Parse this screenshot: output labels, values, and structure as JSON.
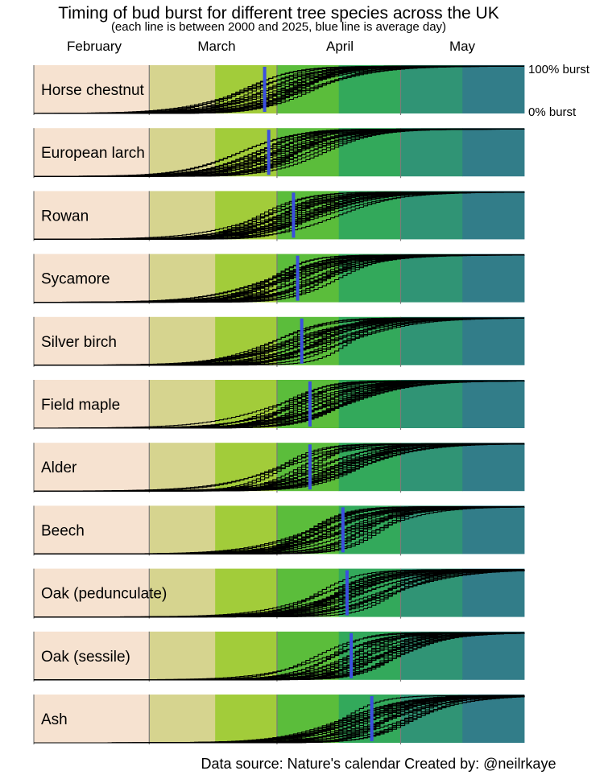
{
  "chart_data": {
    "type": "line",
    "title": "Timing of bud burst for different tree species across the UK",
    "subtitle": "(each line is between 2000 and 2025, blue line is average day)",
    "months": [
      "February",
      "March",
      "April",
      "May"
    ],
    "scale_labels": {
      "top": "100% burst",
      "bottom": "0% burst"
    },
    "y_range": [
      0,
      100
    ],
    "x_unit": "day of year",
    "x_range_doy": [
      32,
      151
    ],
    "bands": [
      {
        "start_doy": 32,
        "end_doy": 60,
        "color": "#f6e2d0"
      },
      {
        "start_doy": 60,
        "end_doy": 76,
        "color": "#d6d48f"
      },
      {
        "start_doy": 76,
        "end_doy": 91,
        "color": "#a2cc3a"
      },
      {
        "start_doy": 91,
        "end_doy": 106,
        "color": "#5bbd3b"
      },
      {
        "start_doy": 106,
        "end_doy": 121,
        "color": "#33a95b"
      },
      {
        "start_doy": 121,
        "end_doy": 136,
        "color": "#309475"
      },
      {
        "start_doy": 136,
        "end_doy": 151,
        "color": "#327d89"
      }
    ],
    "month_dividers_doy": [
      60,
      91,
      121
    ],
    "average_line_color": "#3b4fe0",
    "curve_color": "#000000",
    "series": [
      {
        "name": "Horse chestnut",
        "avg_doy": 88,
        "spread_min_doy": 80,
        "spread_max_doy": 100
      },
      {
        "name": "European larch",
        "avg_doy": 89,
        "spread_min_doy": 81,
        "spread_max_doy": 102
      },
      {
        "name": "Rowan",
        "avg_doy": 95,
        "spread_min_doy": 86,
        "spread_max_doy": 106
      },
      {
        "name": "Sycamore",
        "avg_doy": 96,
        "spread_min_doy": 87,
        "spread_max_doy": 107
      },
      {
        "name": "Silver birch",
        "avg_doy": 97,
        "spread_min_doy": 89,
        "spread_max_doy": 109
      },
      {
        "name": "Field maple",
        "avg_doy": 99,
        "spread_min_doy": 90,
        "spread_max_doy": 111
      },
      {
        "name": "Alder",
        "avg_doy": 99,
        "spread_min_doy": 90,
        "spread_max_doy": 111
      },
      {
        "name": "Beech",
        "avg_doy": 107,
        "spread_min_doy": 98,
        "spread_max_doy": 118
      },
      {
        "name": "Oak (pedunculate)",
        "avg_doy": 108,
        "spread_min_doy": 99,
        "spread_max_doy": 120
      },
      {
        "name": "Oak (sessile)",
        "avg_doy": 109,
        "spread_min_doy": 100,
        "spread_max_doy": 121
      },
      {
        "name": "Ash",
        "avg_doy": 114,
        "spread_min_doy": 105,
        "spread_max_doy": 126
      }
    ]
  },
  "footer": {
    "credit": "Data source: Nature's calendar  Created by: @neilrkaye"
  }
}
